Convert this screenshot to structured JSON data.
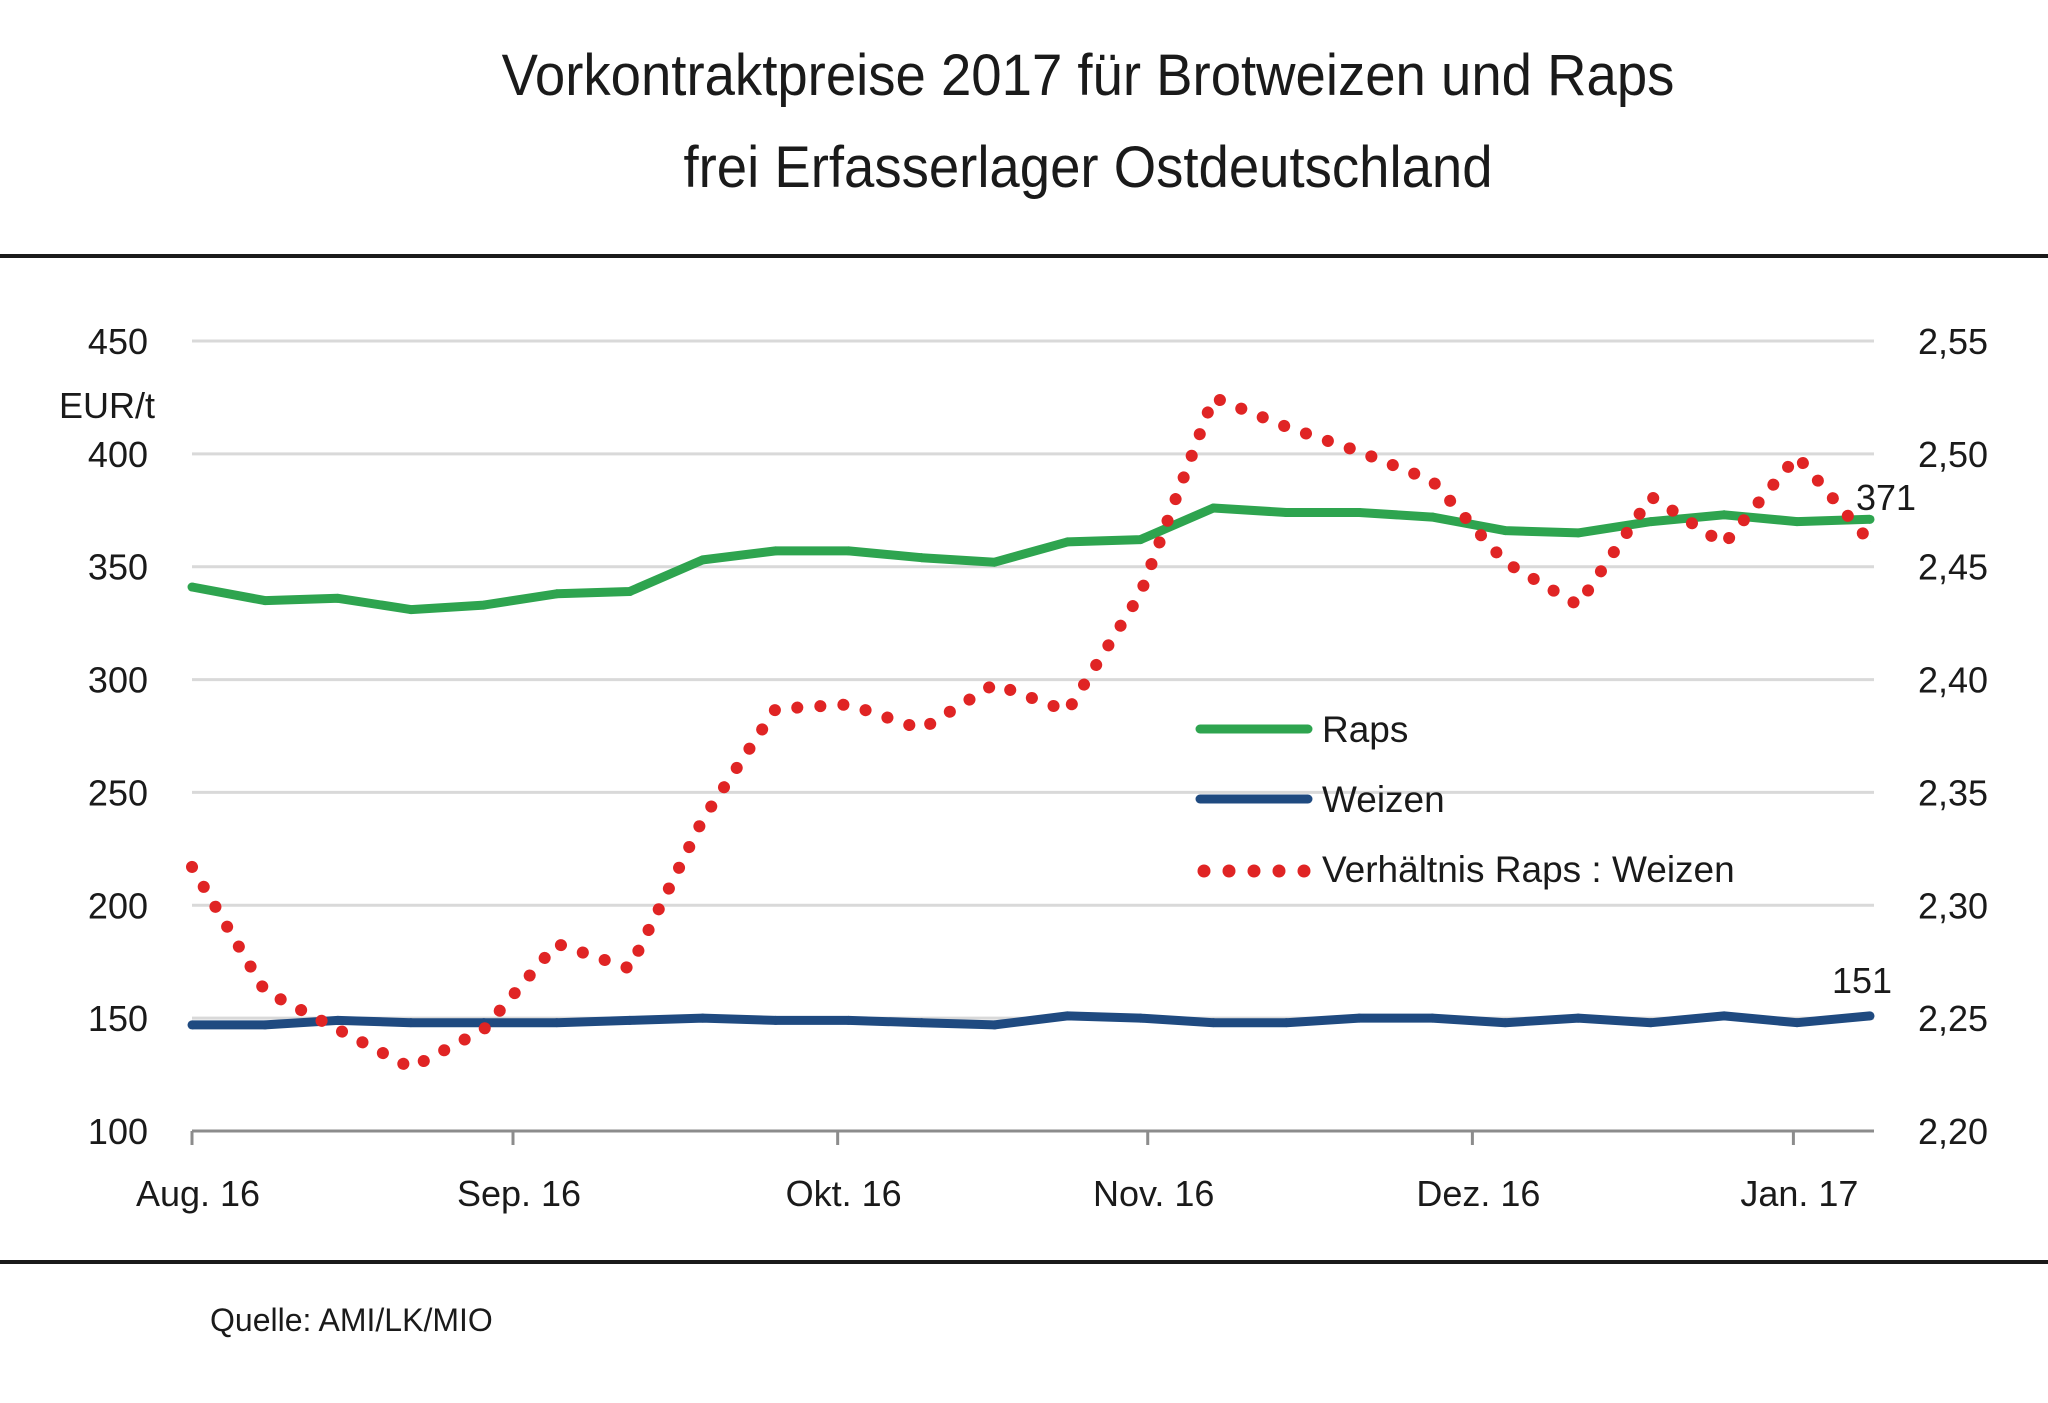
{
  "header": {
    "title_line1": "Vorkontraktpreise 2017 für Brotweizen und Raps",
    "title_line2": "frei Erfasserlager Ostdeutschland"
  },
  "footer": {
    "source": "Quelle: AMI/LK/MIO"
  },
  "colors": {
    "raps": "#2ea44f",
    "weizen": "#1f4a80",
    "ratio": "#e02424",
    "grid": "#d9d9d9",
    "axis": "#8c8c8c"
  },
  "chart_data": {
    "type": "line",
    "title": "Vorkontraktpreise 2017 für Brotweizen und Raps frei Erfasserlager Ostdeutschland",
    "ylabel": "EUR/t",
    "ylim": [
      100,
      450
    ],
    "y_ticks": [
      "100",
      "150",
      "200",
      "250",
      "300",
      "350",
      "400",
      "450"
    ],
    "y_tick_values": [
      100,
      150,
      200,
      250,
      300,
      350,
      400,
      450
    ],
    "y2lim": [
      2.2,
      2.55
    ],
    "y2_ticks": [
      "2,20",
      "2,25",
      "2,30",
      "2,35",
      "2,40",
      "2,45",
      "2,50",
      "2,55"
    ],
    "x_ticks": [
      "Aug. 16",
      "Sep. 16",
      "Okt. 16",
      "Nov. 16",
      "Dez. 16",
      "Jan. 17"
    ],
    "x_tick_index": [
      0,
      4.4,
      8.85,
      13.1,
      17.55,
      21.95
    ],
    "grid": true,
    "legend_position": "center-right",
    "points": 24,
    "series": [
      {
        "name": "Raps",
        "axis": "left",
        "style": "solid",
        "values": [
          341,
          335,
          336,
          331,
          333,
          338,
          339,
          353,
          357,
          357,
          354,
          352,
          361,
          362,
          376,
          374,
          374,
          372,
          366,
          365,
          370,
          373,
          370,
          371
        ],
        "end_label": "371"
      },
      {
        "name": "Weizen",
        "axis": "left",
        "style": "solid",
        "values": [
          147,
          147,
          149,
          148,
          148,
          148,
          149,
          150,
          149,
          149,
          148,
          147,
          151,
          150,
          148,
          148,
          150,
          150,
          148,
          150,
          148,
          151,
          148,
          151
        ],
        "end_label": "151"
      },
      {
        "name": "Verhältnis Raps : Weizen",
        "axis": "right",
        "style": "dotted",
        "values": [
          2.317,
          2.262,
          2.245,
          2.228,
          2.245,
          2.283,
          2.272,
          2.338,
          2.387,
          2.389,
          2.378,
          2.398,
          2.386,
          2.438,
          2.525,
          2.512,
          2.501,
          2.488,
          2.452,
          2.433,
          2.481,
          2.46,
          2.499,
          2.461
        ]
      }
    ]
  }
}
